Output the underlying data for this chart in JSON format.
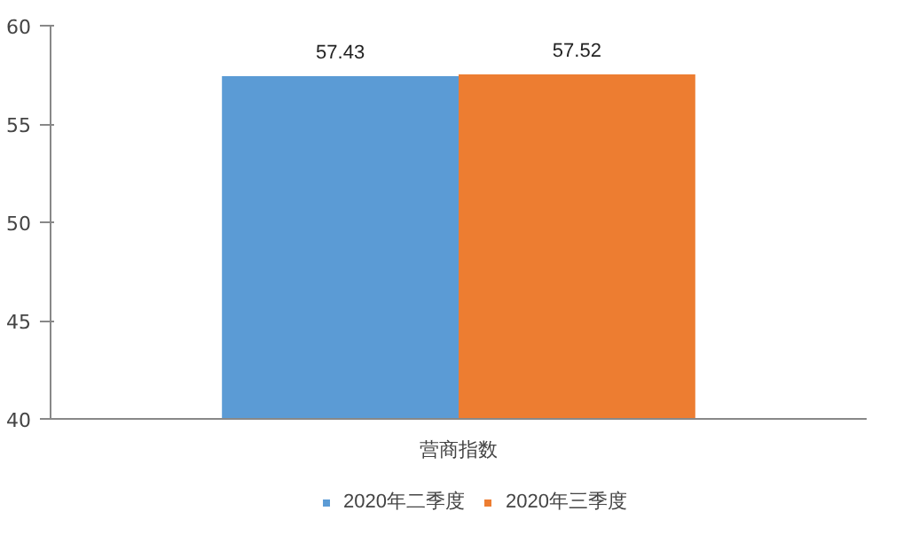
{
  "chart_data": {
    "type": "bar",
    "categories": [
      "营商指数"
    ],
    "series": [
      {
        "name": "2020年二季度",
        "color": "#5b9bd5",
        "values": [
          57.43
        ]
      },
      {
        "name": "2020年三季度",
        "color": "#ed7d31",
        "values": [
          57.52
        ]
      }
    ],
    "ylim": [
      40,
      60
    ],
    "yticks": [
      40,
      45,
      50,
      55,
      60
    ],
    "grid": false,
    "data_labels": true,
    "legend": "bottom"
  }
}
